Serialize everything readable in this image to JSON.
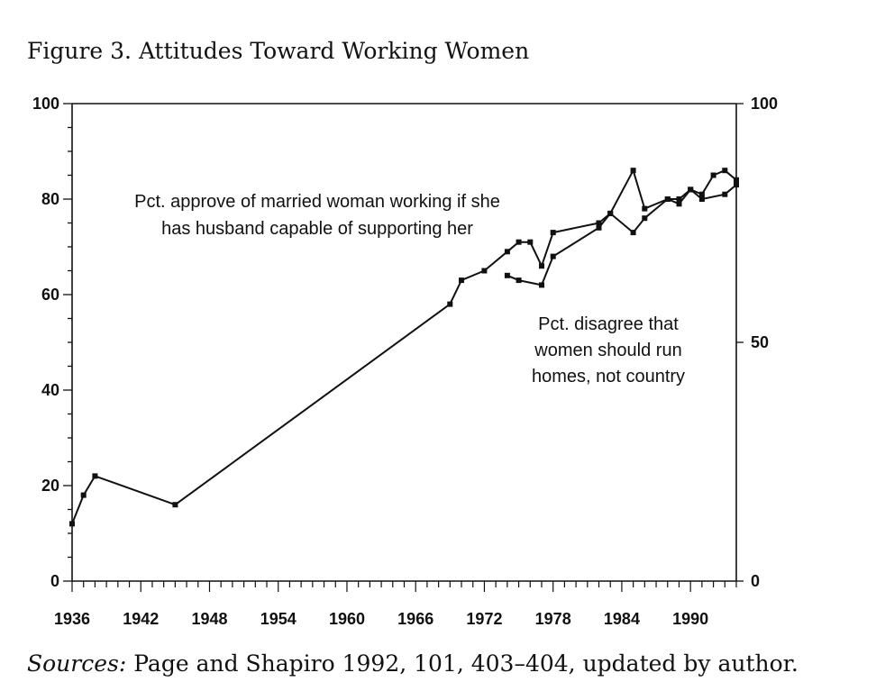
{
  "figure": {
    "title": "Figure 3.  Attitudes Toward Working Women",
    "sources_lead": "Sources:",
    "sources_text": " Page and Shapiro 1992, 101, 403–404, updated by author."
  },
  "chart_data": {
    "type": "line",
    "title": "Figure 3.  Attitudes Toward Working Women",
    "xlabel": "",
    "ylabel": "",
    "xlim": [
      1936,
      1994
    ],
    "ylim": [
      0,
      100
    ],
    "y2lim": [
      0,
      100
    ],
    "x_ticks": [
      1936,
      1942,
      1948,
      1954,
      1960,
      1966,
      1972,
      1978,
      1984,
      1990
    ],
    "y_ticks": [
      0,
      20,
      40,
      60,
      80,
      100
    ],
    "y2_ticks": [
      0,
      50,
      100
    ],
    "grid": false,
    "series": [
      {
        "name": "Pct. approve of married woman working if she has husband capable of supporting her",
        "label_lines": [
          "Pct. approve of married woman working if she",
          "has husband capable of supporting her"
        ],
        "axis": "left",
        "color": "#111111",
        "x": [
          1936,
          1937,
          1938,
          1945,
          1969,
          1970,
          1972,
          1974,
          1975,
          1976,
          1977,
          1978,
          1982,
          1983,
          1985,
          1986,
          1988,
          1989,
          1990,
          1991,
          1993,
          1994
        ],
        "y": [
          12,
          18,
          22,
          16,
          58,
          63,
          65,
          69,
          71,
          71,
          66,
          73,
          75,
          77,
          73,
          76,
          80,
          79,
          82,
          80,
          81,
          83
        ]
      },
      {
        "name": "Pct. disagree that women should run homes, not country",
        "label_lines": [
          "Pct. disagree that",
          "women should run",
          "homes, not country"
        ],
        "axis": "right",
        "color": "#111111",
        "x": [
          1974,
          1975,
          1977,
          1978,
          1982,
          1983,
          1985,
          1986,
          1988,
          1989,
          1990,
          1991,
          1992,
          1993,
          1994
        ],
        "y": [
          64,
          63,
          62,
          68,
          74,
          77,
          86,
          78,
          80,
          80,
          82,
          81,
          85,
          86,
          84
        ]
      }
    ]
  }
}
